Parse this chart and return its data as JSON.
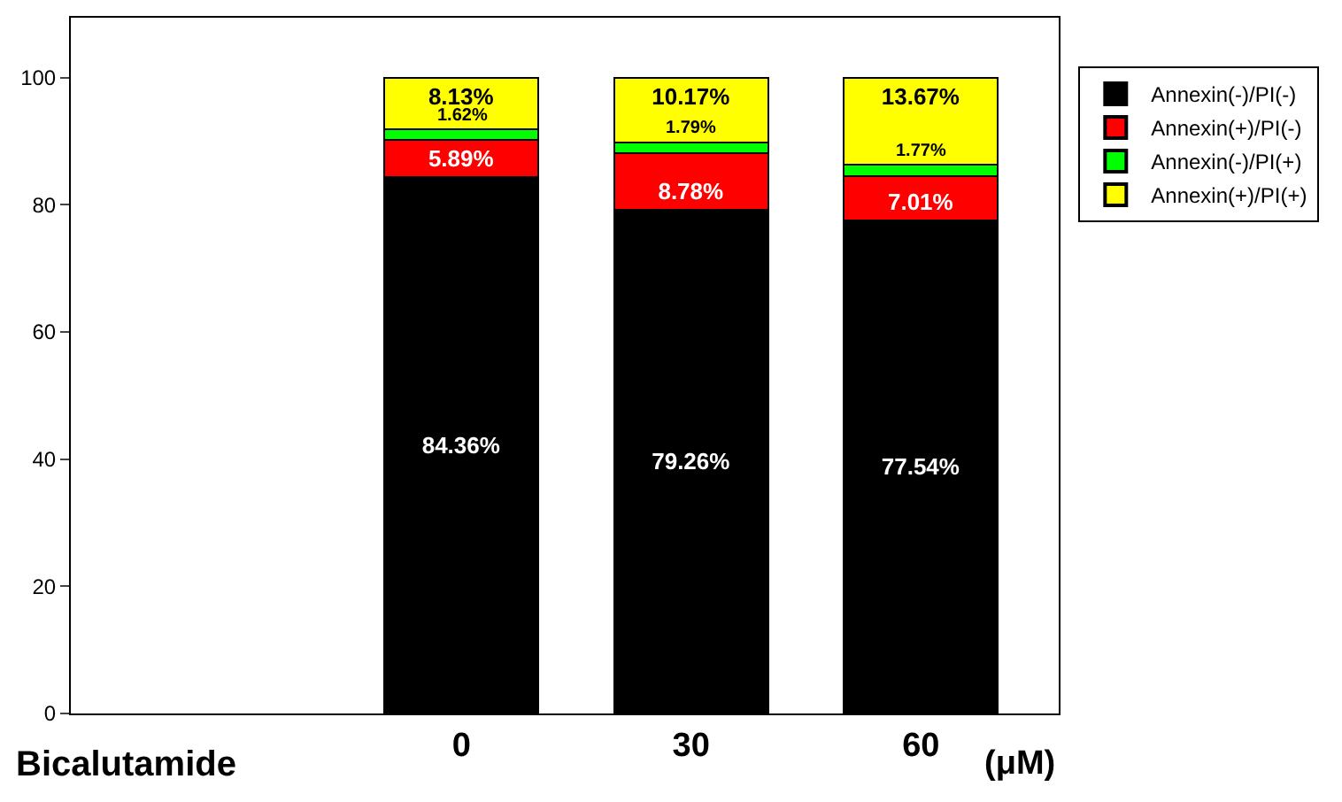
{
  "chart_data": {
    "type": "bar",
    "stacked": true,
    "categories": [
      null,
      "0",
      "30",
      "60"
    ],
    "series": [
      {
        "name": "Annexin(-)/PI(-)",
        "color": "#000000",
        "values": [
          null,
          84.36,
          79.26,
          77.54
        ],
        "value_labels": [
          null,
          "84.36%",
          "79.26%",
          "77.54%"
        ]
      },
      {
        "name": "Annexin(+)/PI(-)",
        "color": "#ff0000",
        "values": [
          null,
          5.89,
          8.78,
          7.01
        ],
        "value_labels": [
          null,
          "5.89%",
          "8.78%",
          "7.01%"
        ]
      },
      {
        "name": "Annexin(-)/PI(+)",
        "color": "#00ff00",
        "values": [
          null,
          1.62,
          1.79,
          1.77
        ],
        "value_labels": [
          null,
          "1.62%",
          "1.79%",
          "1.77%"
        ]
      },
      {
        "name": "Annexin(+)/PI(+)",
        "color": "#ffff00",
        "values": [
          null,
          8.13,
          10.17,
          13.67
        ],
        "value_labels": [
          null,
          "8.13%",
          "10.17%",
          "13.67%"
        ]
      }
    ],
    "xlabel": "Bicalutamide",
    "annotations": [
      "(μM)"
    ],
    "ylim": [
      0,
      109.4
    ],
    "yticks": [
      0,
      20,
      40,
      60,
      80,
      100
    ],
    "legend": "top right"
  }
}
